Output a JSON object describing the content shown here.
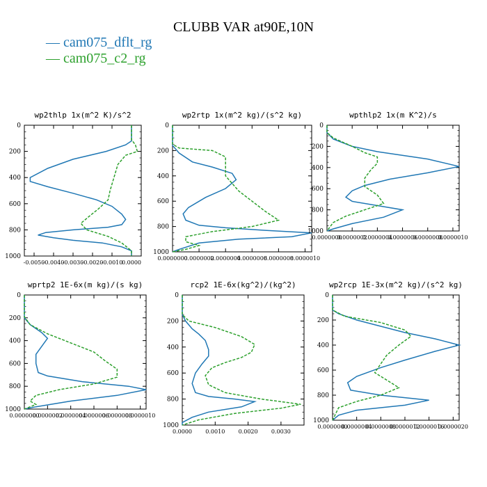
{
  "title": "CLUBB VAR at90E,10N",
  "legend": [
    {
      "label": "— cam075_dflt_rg",
      "color": "#1f77b4"
    },
    {
      "label": "— cam075_c2_rg",
      "color": "#2ca02c"
    }
  ],
  "chart_data": [
    {
      "type": "line",
      "title": "wp2thlp   1x(m^2 K)/s^2",
      "y_ticks": [
        "0",
        "200",
        "400",
        "600",
        "800",
        "1000"
      ],
      "x_ticks": [
        "-0.0050",
        "-0.0040",
        "-0.0030",
        "-0.0020",
        "-0.0010",
        "0.0000"
      ],
      "xlim": [
        -0.0055,
        0.0005
      ],
      "ylim": [
        0,
        1000
      ],
      "series": [
        {
          "name": "cam075_dflt_rg",
          "color": "#1f77b4",
          "dash": false,
          "points": [
            [
              0,
              0
            ],
            [
              0,
              120
            ],
            [
              -0.0003,
              150
            ],
            [
              -0.0013,
              200
            ],
            [
              -0.003,
              260
            ],
            [
              -0.0043,
              330
            ],
            [
              -0.0052,
              400
            ],
            [
              -0.0052,
              430
            ],
            [
              -0.0043,
              470
            ],
            [
              -0.003,
              520
            ],
            [
              -0.0018,
              570
            ],
            [
              -0.001,
              620
            ],
            [
              -0.0005,
              680
            ],
            [
              -0.0003,
              720
            ],
            [
              -0.0005,
              760
            ],
            [
              -0.0012,
              780
            ],
            [
              -0.003,
              800
            ],
            [
              -0.0044,
              820
            ],
            [
              -0.0048,
              840
            ],
            [
              -0.004,
              860
            ],
            [
              -0.003,
              880
            ],
            [
              -0.0015,
              900
            ],
            [
              -0.0005,
              930
            ],
            [
              0,
              960
            ],
            [
              0,
              1000
            ]
          ]
        },
        {
          "name": "cam075_c2_rg",
          "color": "#2ca02c",
          "dash": true,
          "points": [
            [
              0,
              0
            ],
            [
              0,
              110
            ],
            [
              0.0002,
              150
            ],
            [
              0.0003,
              200
            ],
            [
              -0.0003,
              230
            ],
            [
              -0.0007,
              300
            ],
            [
              -0.0009,
              400
            ],
            [
              -0.0011,
              500
            ],
            [
              -0.0012,
              570
            ],
            [
              -0.0017,
              640
            ],
            [
              -0.0022,
              700
            ],
            [
              -0.0026,
              750
            ],
            [
              -0.0023,
              800
            ],
            [
              -0.0012,
              850
            ],
            [
              -0.0005,
              900
            ],
            [
              0,
              960
            ],
            [
              0,
              1000
            ]
          ]
        }
      ]
    },
    {
      "type": "line",
      "title": "wp2rtp   1x(m^2 kg)/(s^2 kg)",
      "y_ticks": [
        "0",
        "200",
        "400",
        "600",
        "800",
        "1000"
      ],
      "x_ticks": [
        "0.0000000",
        "0.0000002",
        "0.0000004",
        "0.0000006",
        "0.0000008",
        "0.0000010"
      ],
      "xlim": [
        0,
        1.05e-06
      ],
      "ylim": [
        0,
        1000
      ],
      "series": [
        {
          "name": "cam075_dflt_rg",
          "color": "#1f77b4",
          "dash": false,
          "points": [
            [
              0,
              0
            ],
            [
              0,
              160
            ],
            [
              5e-08,
              220
            ],
            [
              1.5e-07,
              290
            ],
            [
              3e-07,
              330
            ],
            [
              4.5e-07,
              380
            ],
            [
              4.8e-07,
              430
            ],
            [
              4e-07,
              500
            ],
            [
              2.5e-07,
              570
            ],
            [
              1.2e-07,
              650
            ],
            [
              8e-08,
              700
            ],
            [
              1e-07,
              750
            ],
            [
              2e-07,
              790
            ],
            [
              4e-07,
              810
            ],
            [
              7e-07,
              830
            ],
            [
              1.05e-06,
              850
            ],
            [
              9e-07,
              880
            ],
            [
              5e-07,
              900
            ],
            [
              2e-07,
              930
            ],
            [
              5e-08,
              980
            ],
            [
              0,
              1000
            ]
          ]
        },
        {
          "name": "cam075_c2_rg",
          "color": "#2ca02c",
          "dash": true,
          "points": [
            [
              0,
              0
            ],
            [
              0,
              150
            ],
            [
              5e-08,
              180
            ],
            [
              3e-07,
              200
            ],
            [
              4e-07,
              250
            ],
            [
              4e-07,
              400
            ],
            [
              5e-07,
              520
            ],
            [
              6e-07,
              600
            ],
            [
              7e-07,
              680
            ],
            [
              8e-07,
              750
            ],
            [
              6e-07,
              800
            ],
            [
              3e-07,
              840
            ],
            [
              1e-07,
              880
            ],
            [
              1e-07,
              920
            ],
            [
              2e-07,
              950
            ],
            [
              1e-07,
              980
            ],
            [
              0,
              1000
            ]
          ]
        }
      ]
    },
    {
      "type": "line",
      "title": "wpthlp2   1x(m K^2)/s",
      "y_ticks": [
        "0",
        "200",
        "400",
        "600",
        "800",
        "1000"
      ],
      "x_ticks": [
        "0.0000000",
        "0.0000002",
        "0.0000004",
        "0.0000006",
        "0.0000008",
        "0.0000010"
      ],
      "xlim": [
        0,
        1.05e-06
      ],
      "ylim": [
        0,
        1000
      ],
      "series": [
        {
          "name": "cam075_dflt_rg",
          "color": "#1f77b4",
          "dash": false,
          "points": [
            [
              0,
              0
            ],
            [
              0,
              70
            ],
            [
              5e-08,
              130
            ],
            [
              2e-07,
              200
            ],
            [
              4e-07,
              250
            ],
            [
              8e-07,
              320
            ],
            [
              1.05e-06,
              390
            ],
            [
              8e-07,
              450
            ],
            [
              5e-07,
              510
            ],
            [
              3e-07,
              570
            ],
            [
              2e-07,
              620
            ],
            [
              1.5e-07,
              680
            ],
            [
              2e-07,
              720
            ],
            [
              4e-07,
              760
            ],
            [
              6e-07,
              800
            ],
            [
              4.5e-07,
              870
            ],
            [
              2e-07,
              930
            ],
            [
              5e-08,
              980
            ],
            [
              0,
              1000
            ]
          ]
        },
        {
          "name": "cam075_c2_rg",
          "color": "#2ca02c",
          "dash": true,
          "points": [
            [
              0,
              0
            ],
            [
              0,
              70
            ],
            [
              5e-08,
              120
            ],
            [
              2e-07,
              200
            ],
            [
              3e-07,
              260
            ],
            [
              4e-07,
              300
            ],
            [
              4e-07,
              360
            ],
            [
              3.5e-07,
              420
            ],
            [
              3e-07,
              500
            ],
            [
              3e-07,
              580
            ],
            [
              4e-07,
              660
            ],
            [
              4.5e-07,
              740
            ],
            [
              3e-07,
              800
            ],
            [
              1.5e-07,
              860
            ],
            [
              5e-08,
              920
            ],
            [
              0,
              1000
            ]
          ]
        }
      ]
    },
    {
      "type": "line",
      "title": "wprtp2   1E-6x(m kg)/(s kg)",
      "y_ticks": [
        "0",
        "200",
        "400",
        "600",
        "800",
        "1000"
      ],
      "x_ticks": [
        "0.0000000",
        "0.0000002",
        "0.0000004",
        "0.0000006",
        "0.0000008",
        "0.0000010"
      ],
      "xlim": [
        0,
        1.05e-06
      ],
      "ylim": [
        0,
        1000
      ],
      "series": [
        {
          "name": "cam075_dflt_rg",
          "color": "#1f77b4",
          "dash": false,
          "points": [
            [
              0,
              0
            ],
            [
              0,
              200
            ],
            [
              5e-08,
              260
            ],
            [
              1.5e-07,
              330
            ],
            [
              2e-07,
              380
            ],
            [
              1.5e-07,
              450
            ],
            [
              1e-07,
              520
            ],
            [
              1e-07,
              600
            ],
            [
              1.2e-07,
              680
            ],
            [
              2e-07,
              710
            ],
            [
              5e-07,
              760
            ],
            [
              9e-07,
              800
            ],
            [
              1.05e-06,
              830
            ],
            [
              8e-07,
              880
            ],
            [
              4e-07,
              930
            ],
            [
              1e-07,
              980
            ],
            [
              0,
              1000
            ]
          ]
        },
        {
          "name": "cam075_c2_rg",
          "color": "#2ca02c",
          "dash": true,
          "points": [
            [
              0,
              0
            ],
            [
              0,
              190
            ],
            [
              5e-08,
              260
            ],
            [
              2e-07,
              340
            ],
            [
              4e-07,
              420
            ],
            [
              6e-07,
              500
            ],
            [
              7e-07,
              580
            ],
            [
              8e-07,
              650
            ],
            [
              8e-07,
              720
            ],
            [
              6e-07,
              780
            ],
            [
              3e-07,
              830
            ],
            [
              1e-07,
              880
            ],
            [
              5e-08,
              930
            ],
            [
              1e-07,
              960
            ],
            [
              0,
              1000
            ]
          ]
        }
      ]
    },
    {
      "type": "line",
      "title": "rcp2   1E-6x(kg^2)/(kg^2)",
      "y_ticks": [
        "0",
        "200",
        "400",
        "600",
        "800",
        "1000"
      ],
      "x_ticks": [
        "0.0000",
        "0.0010",
        "0.0020",
        "0.0030"
      ],
      "xlim": [
        0,
        0.0037
      ],
      "ylim": [
        0,
        1000
      ],
      "series": [
        {
          "name": "cam075_dflt_rg",
          "color": "#1f77b4",
          "dash": false,
          "points": [
            [
              0,
              0
            ],
            [
              0,
              150
            ],
            [
              0.0001,
              200
            ],
            [
              0.0003,
              260
            ],
            [
              0.0005,
              300
            ],
            [
              0.0007,
              350
            ],
            [
              0.0008,
              420
            ],
            [
              0.0008,
              470
            ],
            [
              0.0006,
              530
            ],
            [
              0.0004,
              600
            ],
            [
              0.0003,
              680
            ],
            [
              0.0004,
              750
            ],
            [
              0.0008,
              780
            ],
            [
              0.0016,
              800
            ],
            [
              0.0022,
              820
            ],
            [
              0.0018,
              860
            ],
            [
              0.0008,
              900
            ],
            [
              0.0003,
              940
            ],
            [
              0,
              980
            ],
            [
              0,
              1000
            ]
          ]
        },
        {
          "name": "cam075_c2_rg",
          "color": "#2ca02c",
          "dash": true,
          "points": [
            [
              0,
              0
            ],
            [
              0,
              150
            ],
            [
              0.0002,
              200
            ],
            [
              0.001,
              250
            ],
            [
              0.0018,
              320
            ],
            [
              0.0022,
              380
            ],
            [
              0.0021,
              440
            ],
            [
              0.0018,
              480
            ],
            [
              0.0013,
              520
            ],
            [
              0.0009,
              560
            ],
            [
              0.0007,
              620
            ],
            [
              0.0008,
              690
            ],
            [
              0.0013,
              750
            ],
            [
              0.0024,
              800
            ],
            [
              0.0036,
              840
            ],
            [
              0.003,
              870
            ],
            [
              0.0016,
              910
            ],
            [
              0.0005,
              960
            ],
            [
              0,
              1000
            ]
          ]
        }
      ]
    },
    {
      "type": "line",
      "title": "wp2rcp   1E-3x(m^2 kg)/(s^2 kg)",
      "y_ticks": [
        "0",
        "200",
        "400",
        "600",
        "800",
        "1000"
      ],
      "x_ticks": [
        "0.0000000",
        "0.0000004",
        "0.0000008",
        "0.0000012",
        "0.0000016",
        "0.0000020"
      ],
      "xlim": [
        0,
        2.1e-06
      ],
      "ylim": [
        0,
        1000
      ],
      "series": [
        {
          "name": "cam075_dflt_rg",
          "color": "#1f77b4",
          "dash": false,
          "points": [
            [
              0,
              0
            ],
            [
              0,
              120
            ],
            [
              1e-07,
              150
            ],
            [
              4e-07,
              200
            ],
            [
              8e-07,
              250
            ],
            [
              1.2e-06,
              300
            ],
            [
              1.7e-06,
              350
            ],
            [
              2.1e-06,
              400
            ],
            [
              1.7e-06,
              450
            ],
            [
              1.2e-06,
              520
            ],
            [
              8e-07,
              580
            ],
            [
              4e-07,
              650
            ],
            [
              2.5e-07,
              700
            ],
            [
              3e-07,
              760
            ],
            [
              8e-07,
              800
            ],
            [
              1.6e-06,
              840
            ],
            [
              1.2e-06,
              880
            ],
            [
              4e-07,
              920
            ],
            [
              1e-07,
              960
            ],
            [
              0,
              1000
            ]
          ]
        },
        {
          "name": "cam075_c2_rg",
          "color": "#2ca02c",
          "dash": true,
          "points": [
            [
              0,
              0
            ],
            [
              0,
              120
            ],
            [
              2e-07,
              170
            ],
            [
              8e-07,
              220
            ],
            [
              1.2e-06,
              280
            ],
            [
              1.3e-06,
              330
            ],
            [
              1.1e-06,
              400
            ],
            [
              9e-07,
              480
            ],
            [
              8e-07,
              550
            ],
            [
              7e-07,
              620
            ],
            [
              9e-07,
              680
            ],
            [
              1.1e-06,
              740
            ],
            [
              8e-07,
              800
            ],
            [
              4e-07,
              850
            ],
            [
              1e-07,
              900
            ],
            [
              0,
              1000
            ]
          ]
        }
      ]
    }
  ]
}
